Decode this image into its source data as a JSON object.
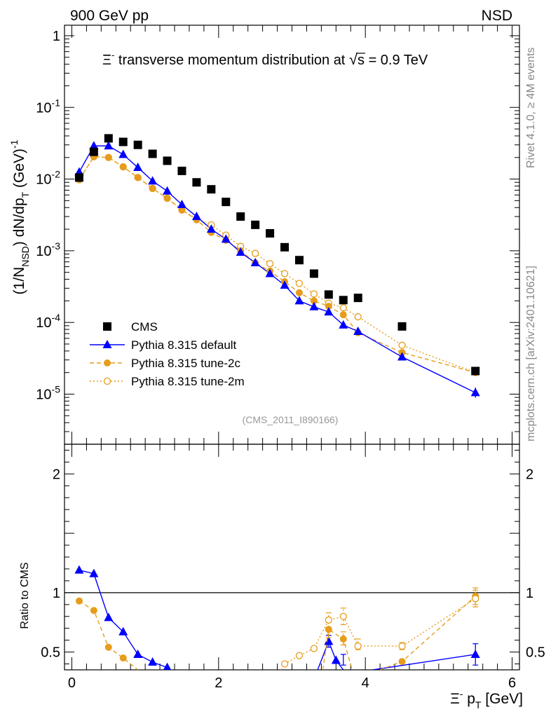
{
  "header": {
    "left": "900 GeV pp",
    "right": "NSD",
    "title_part1": "Ξ",
    "title_sup": "-",
    "title_part2": " transverse momentum distribution at ",
    "title_sqrt": "s",
    "title_part3": " = 0.9 TeV",
    "analysis_id": "(CMS_2011_I890166)",
    "side_top": "Rivet 4.1.0, ≥ 4M events",
    "side_bottom": "mcplots.cern.ch [arXiv:2401.10621]"
  },
  "colors": {
    "cms": "#000000",
    "default": "#0000ff",
    "tune2c": "#e69c1c",
    "tune2m": "#e69c1c"
  },
  "chart_data": [
    {
      "type": "scatter",
      "panel": "main",
      "yscale": "log",
      "ylabel_parts": [
        "(1/N",
        "NSD",
        ") dN/dp",
        "T",
        " (GeV)",
        "-1"
      ],
      "xlim": [
        -0.1,
        6.1
      ],
      "ylim": [
        2e-06,
        1.4
      ],
      "ytick_labels": [
        {
          "v": 1,
          "mant": "1",
          "exp": ""
        },
        {
          "v": 0.1,
          "mant": "10",
          "exp": "-1"
        },
        {
          "v": 0.01,
          "mant": "10",
          "exp": "-2"
        },
        {
          "v": 0.001,
          "mant": "10",
          "exp": "-3"
        },
        {
          "v": 0.0001,
          "mant": "10",
          "exp": "-4"
        },
        {
          "v": 1e-05,
          "mant": "10",
          "exp": "-5"
        }
      ],
      "x": [
        0.1,
        0.3,
        0.5,
        0.7,
        0.9,
        1.1,
        1.3,
        1.5,
        1.7,
        1.9,
        2.1,
        2.3,
        2.5,
        2.7,
        2.9,
        3.1,
        3.3,
        3.5,
        3.7,
        3.9,
        4.5,
        5.5
      ],
      "series": [
        {
          "name": "CMS",
          "key": "cms",
          "style": "square",
          "values": [
            0.0105,
            0.024,
            0.037,
            0.033,
            0.03,
            0.0225,
            0.018,
            0.013,
            0.009,
            0.0072,
            0.0048,
            0.003,
            0.0023,
            0.00175,
            0.00112,
            0.00074,
            0.00048,
            0.000245,
            0.000205,
            0.00022,
            8.8e-05,
            2.1e-05
          ]
        },
        {
          "name": "Pythia 8.315 default",
          "key": "default",
          "style": "triangle",
          "values": [
            0.0125,
            0.029,
            0.029,
            0.022,
            0.0145,
            0.0094,
            0.0068,
            0.0044,
            0.003,
            0.002,
            0.00145,
            0.00095,
            0.00068,
            0.00048,
            0.00033,
            0.0002,
            0.000165,
            0.00014,
            9.2e-05,
            7.5e-05,
            3.3e-05,
            1.05e-05
          ]
        },
        {
          "name": "Pythia 8.315 tune-2c",
          "key": "tune2c",
          "style": "circle",
          "values": [
            0.0098,
            0.0205,
            0.02,
            0.0148,
            0.0105,
            0.0074,
            0.0054,
            0.0037,
            0.0027,
            0.0018,
            0.0014,
            0.001,
            0.00068,
            0.00052,
            0.00037,
            0.00026,
            0.0002,
            0.000168,
            0.000128,
            7.2e-05,
            3.8e-05,
            2e-05
          ]
        },
        {
          "name": "Pythia 8.315 tune-2m",
          "key": "tune2m",
          "style": "open-circle",
          "values": [
            0.0098,
            0.0205,
            0.02,
            0.0148,
            0.0105,
            0.0074,
            0.0054,
            0.0037,
            0.0028,
            0.0023,
            0.00165,
            0.00115,
            0.00092,
            0.00066,
            0.00048,
            0.00035,
            0.00025,
            0.000185,
            0.00016,
            0.00012,
            4.8e-05,
            2e-05
          ]
        }
      ],
      "legend": [
        "CMS",
        "Pythia 8.315 default",
        "Pythia 8.315 tune-2c",
        "Pythia 8.315 tune-2m"
      ],
      "legend_loc": "lower-left"
    },
    {
      "type": "line",
      "panel": "ratio",
      "ylabel": "Ratio to CMS",
      "xlabel_parts": [
        "Ξ",
        "-",
        " p",
        "T",
        " [GeV]"
      ],
      "xlim": [
        -0.1,
        6.1
      ],
      "ylim": [
        0.35,
        2.25
      ],
      "xtick_labels": [
        "0",
        "2",
        "4",
        "6"
      ],
      "ytick_labels": [
        "0.5",
        "1",
        "2"
      ],
      "reference_line": 1,
      "series": [
        {
          "name": "Pythia 8.315 default",
          "key": "default",
          "points": [
            [
              0.1,
              1.19
            ],
            [
              0.3,
              1.16
            ],
            [
              0.5,
              0.79
            ],
            [
              0.7,
              0.67
            ],
            [
              0.9,
              0.48
            ],
            [
              1.1,
              0.415
            ],
            [
              1.3,
              0.37
            ]
          ],
          "segments": [
            {
              "points": [
                [
                  3.35,
                  0.35
                ],
                [
                  3.5,
                  0.59
                ],
                [
                  3.6,
                  0.43
                ],
                [
                  3.7,
                  0.35
                ]
              ]
            },
            {
              "points": [
                [
                  4.1,
                  0.35
                ],
                [
                  5.5,
                  0.48
                ]
              ]
            }
          ],
          "err": [
            [
              3.5,
              0.54,
              0.64
            ],
            [
              3.7,
              0.39,
              0.48
            ],
            [
              5.5,
              0.39,
              0.57
            ]
          ]
        },
        {
          "name": "Pythia 8.315 tune-2c",
          "key": "tune2c",
          "points": [
            [
              0.1,
              0.93
            ],
            [
              0.3,
              0.85
            ],
            [
              0.5,
              0.54
            ],
            [
              0.7,
              0.45
            ],
            [
              0.9,
              0.35
            ]
          ],
          "segments": [
            {
              "points": [
                [
                  3.42,
                  0.35
                ],
                [
                  3.5,
                  0.69
                ],
                [
                  3.7,
                  0.61
                ],
                [
                  3.82,
                  0.35
                ]
              ]
            },
            {
              "points": [
                [
                  4.2,
                  0.35
                ],
                [
                  4.5,
                  0.42
                ],
                [
                  5.5,
                  0.97
                ]
              ]
            }
          ],
          "err": [
            [
              3.5,
              0.62,
              0.77
            ],
            [
              3.7,
              0.56,
              0.67
            ],
            [
              5.5,
              0.9,
              1.04
            ]
          ]
        },
        {
          "name": "Pythia 8.315 tune-2m",
          "key": "tune2m",
          "points": [
            [
              2.85,
              0.35
            ],
            [
              2.9,
              0.4
            ],
            [
              3.1,
              0.47
            ],
            [
              3.3,
              0.53
            ],
            [
              3.5,
              0.77
            ],
            [
              3.7,
              0.8
            ],
            [
              3.9,
              0.55
            ],
            [
              4.5,
              0.55
            ],
            [
              5.5,
              0.95
            ]
          ],
          "segments": [],
          "err": [
            [
              3.5,
              0.71,
              0.83
            ],
            [
              3.7,
              0.73,
              0.87
            ],
            [
              3.9,
              0.52,
              0.61
            ],
            [
              4.5,
              0.52,
              0.58
            ],
            [
              5.5,
              0.88,
              1.02
            ]
          ]
        }
      ]
    }
  ]
}
